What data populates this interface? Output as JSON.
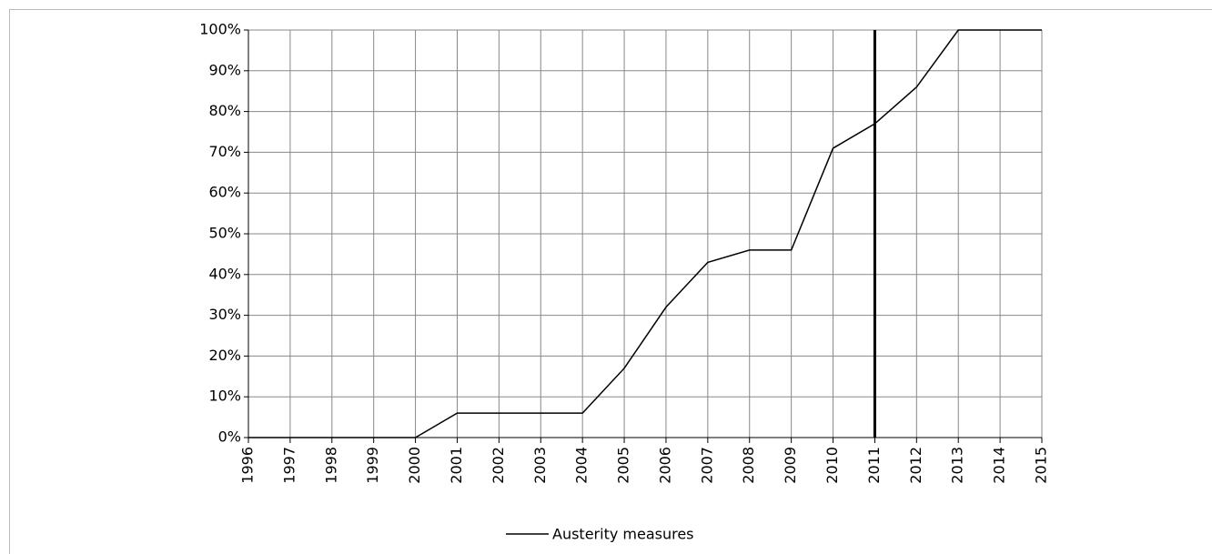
{
  "chart_data": {
    "type": "line",
    "x": [
      1996,
      1997,
      1998,
      1999,
      2000,
      2001,
      2002,
      2003,
      2004,
      2005,
      2006,
      2007,
      2008,
      2009,
      2010,
      2011,
      2012,
      2013,
      2014,
      2015
    ],
    "series": [
      {
        "name": "Austerity measures",
        "color": "#000000",
        "values": [
          0,
          0,
          0,
          0,
          0,
          6,
          6,
          6,
          6,
          17,
          32,
          43,
          46,
          46,
          71,
          77,
          86,
          100,
          100,
          100
        ]
      }
    ],
    "xlim": [
      1996,
      2015
    ],
    "xticks": [
      1996,
      1997,
      1998,
      1999,
      2000,
      2001,
      2002,
      2003,
      2004,
      2005,
      2006,
      2007,
      2008,
      2009,
      2010,
      2011,
      2012,
      2013,
      2014,
      2015
    ],
    "ylim": [
      0,
      100
    ],
    "yticks": [
      {
        "value": 0,
        "label": "0%"
      },
      {
        "value": 10,
        "label": "10%"
      },
      {
        "value": 20,
        "label": "20%"
      },
      {
        "value": 30,
        "label": "30%"
      },
      {
        "value": 40,
        "label": "40%"
      },
      {
        "value": 50,
        "label": "50%"
      },
      {
        "value": 60,
        "label": "60%"
      },
      {
        "value": 70,
        "label": "70%"
      },
      {
        "value": 80,
        "label": "80%"
      },
      {
        "value": 90,
        "label": "90%"
      },
      {
        "value": 100,
        "label": "100%"
      }
    ],
    "grid": true,
    "reference_line": {
      "x": 2011,
      "color": "#000000"
    },
    "legend": "bottom"
  }
}
